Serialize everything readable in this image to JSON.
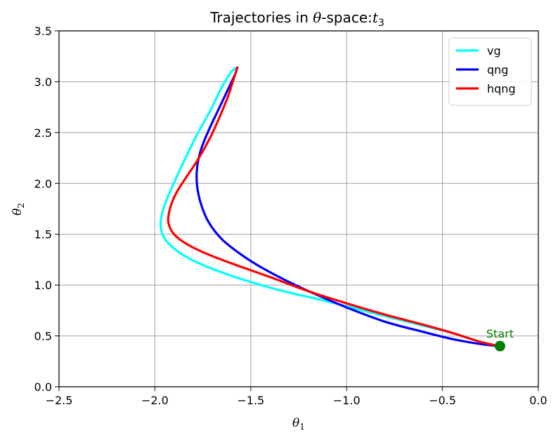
{
  "chart_data": {
    "type": "line",
    "title_text": "Trajectories in ",
    "title_theta": "θ",
    "title_mid": "-space:",
    "title_t": "t",
    "title_sub": "3",
    "xlabel_main": "θ",
    "xlabel_sub": "1",
    "ylabel_main": "θ",
    "ylabel_sub": "2",
    "xlim": [
      -2.5,
      0.0
    ],
    "ylim": [
      0.0,
      3.5
    ],
    "xticks": [
      -2.5,
      -2.0,
      -1.5,
      -1.0,
      -0.5,
      0.0
    ],
    "xtick_labels": [
      "−2.5",
      "−2.0",
      "−1.5",
      "−1.0",
      "−0.5",
      "0.0"
    ],
    "yticks": [
      0.0,
      0.5,
      1.0,
      1.5,
      2.0,
      2.5,
      3.0,
      3.5
    ],
    "ytick_labels": [
      "0.0",
      "0.5",
      "1.0",
      "1.5",
      "2.0",
      "2.5",
      "3.0",
      "3.5"
    ],
    "grid": true,
    "legend_position": "top-right",
    "series": [
      {
        "name": "vg",
        "color": "#00ffff",
        "points": [
          [
            -0.2,
            0.4
          ],
          [
            -0.28,
            0.43
          ],
          [
            -0.45,
            0.53
          ],
          [
            -0.6,
            0.6
          ],
          [
            -0.85,
            0.72
          ],
          [
            -1.1,
            0.84
          ],
          [
            -1.35,
            0.95
          ],
          [
            -1.55,
            1.06
          ],
          [
            -1.7,
            1.16
          ],
          [
            -1.82,
            1.26
          ],
          [
            -1.9,
            1.36
          ],
          [
            -1.95,
            1.46
          ],
          [
            -1.97,
            1.58
          ],
          [
            -1.96,
            1.72
          ],
          [
            -1.93,
            1.88
          ],
          [
            -1.89,
            2.05
          ],
          [
            -1.84,
            2.25
          ],
          [
            -1.78,
            2.48
          ],
          [
            -1.71,
            2.72
          ],
          [
            -1.65,
            2.95
          ],
          [
            -1.6,
            3.1
          ],
          [
            -1.57,
            3.14
          ]
        ]
      },
      {
        "name": "qng",
        "color": "#0000ff",
        "points": [
          [
            -0.2,
            0.4
          ],
          [
            -0.3,
            0.42
          ],
          [
            -0.45,
            0.47
          ],
          [
            -0.6,
            0.54
          ],
          [
            -0.8,
            0.64
          ],
          [
            -1.0,
            0.78
          ],
          [
            -1.15,
            0.9
          ],
          [
            -1.3,
            1.03
          ],
          [
            -1.45,
            1.18
          ],
          [
            -1.55,
            1.3
          ],
          [
            -1.65,
            1.45
          ],
          [
            -1.72,
            1.62
          ],
          [
            -1.76,
            1.8
          ],
          [
            -1.78,
            1.98
          ],
          [
            -1.78,
            2.15
          ],
          [
            -1.76,
            2.33
          ],
          [
            -1.72,
            2.52
          ],
          [
            -1.67,
            2.72
          ],
          [
            -1.62,
            2.92
          ],
          [
            -1.58,
            3.08
          ],
          [
            -1.57,
            3.14
          ]
        ]
      },
      {
        "name": "hqng",
        "color": "#ff0000",
        "points": [
          [
            -0.2,
            0.4
          ],
          [
            -0.3,
            0.44
          ],
          [
            -0.45,
            0.53
          ],
          [
            -0.6,
            0.61
          ],
          [
            -0.8,
            0.71
          ],
          [
            -1.0,
            0.82
          ],
          [
            -1.2,
            0.94
          ],
          [
            -1.4,
            1.08
          ],
          [
            -1.58,
            1.2
          ],
          [
            -1.72,
            1.3
          ],
          [
            -1.83,
            1.4
          ],
          [
            -1.9,
            1.5
          ],
          [
            -1.93,
            1.62
          ],
          [
            -1.92,
            1.76
          ],
          [
            -1.89,
            1.9
          ],
          [
            -1.84,
            2.05
          ],
          [
            -1.78,
            2.22
          ],
          [
            -1.72,
            2.42
          ],
          [
            -1.67,
            2.62
          ],
          [
            -1.62,
            2.85
          ],
          [
            -1.59,
            3.02
          ],
          [
            -1.57,
            3.14
          ]
        ]
      }
    ],
    "start_point": {
      "x": -0.2,
      "y": 0.4,
      "label": "Start",
      "color": "#008000"
    }
  }
}
